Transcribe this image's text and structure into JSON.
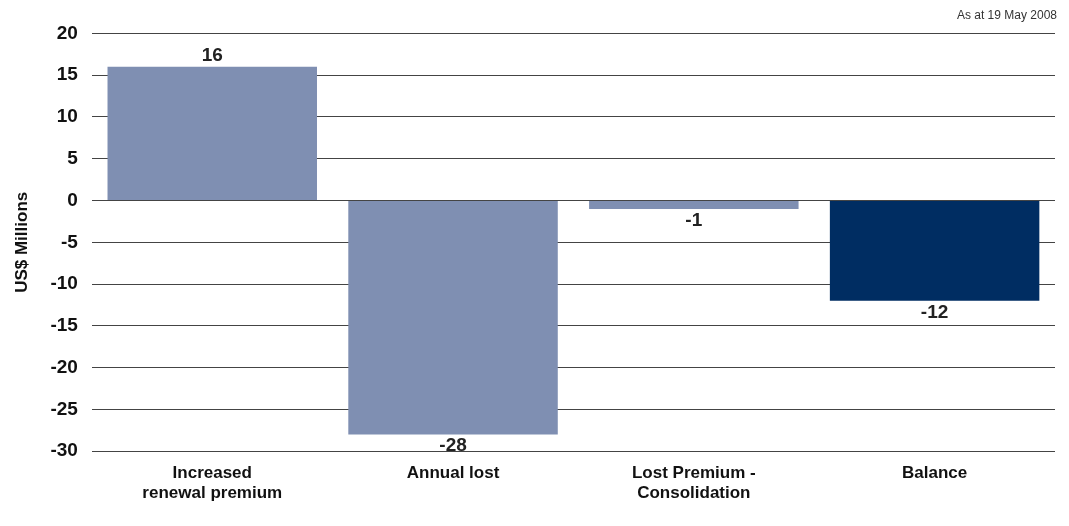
{
  "chart_data": {
    "type": "bar",
    "categories": [
      "Increased renewal premium",
      "Annual lost",
      "Lost Premium - Consolidation",
      "Balance"
    ],
    "values": [
      16,
      -28,
      -1,
      -12
    ],
    "colors": [
      "#7f8fb2",
      "#7f8fb2",
      "#7f8fb2",
      "#002d62"
    ],
    "ylabel": "US$ Millions",
    "ylim": [
      -30,
      20
    ],
    "yticks": [
      -30,
      -25,
      -20,
      -15,
      -10,
      -5,
      0,
      5,
      10,
      15,
      20
    ],
    "grid": "y",
    "legend": false,
    "data_labels": true,
    "annotations": [
      "As at 19 May 2008"
    ]
  }
}
